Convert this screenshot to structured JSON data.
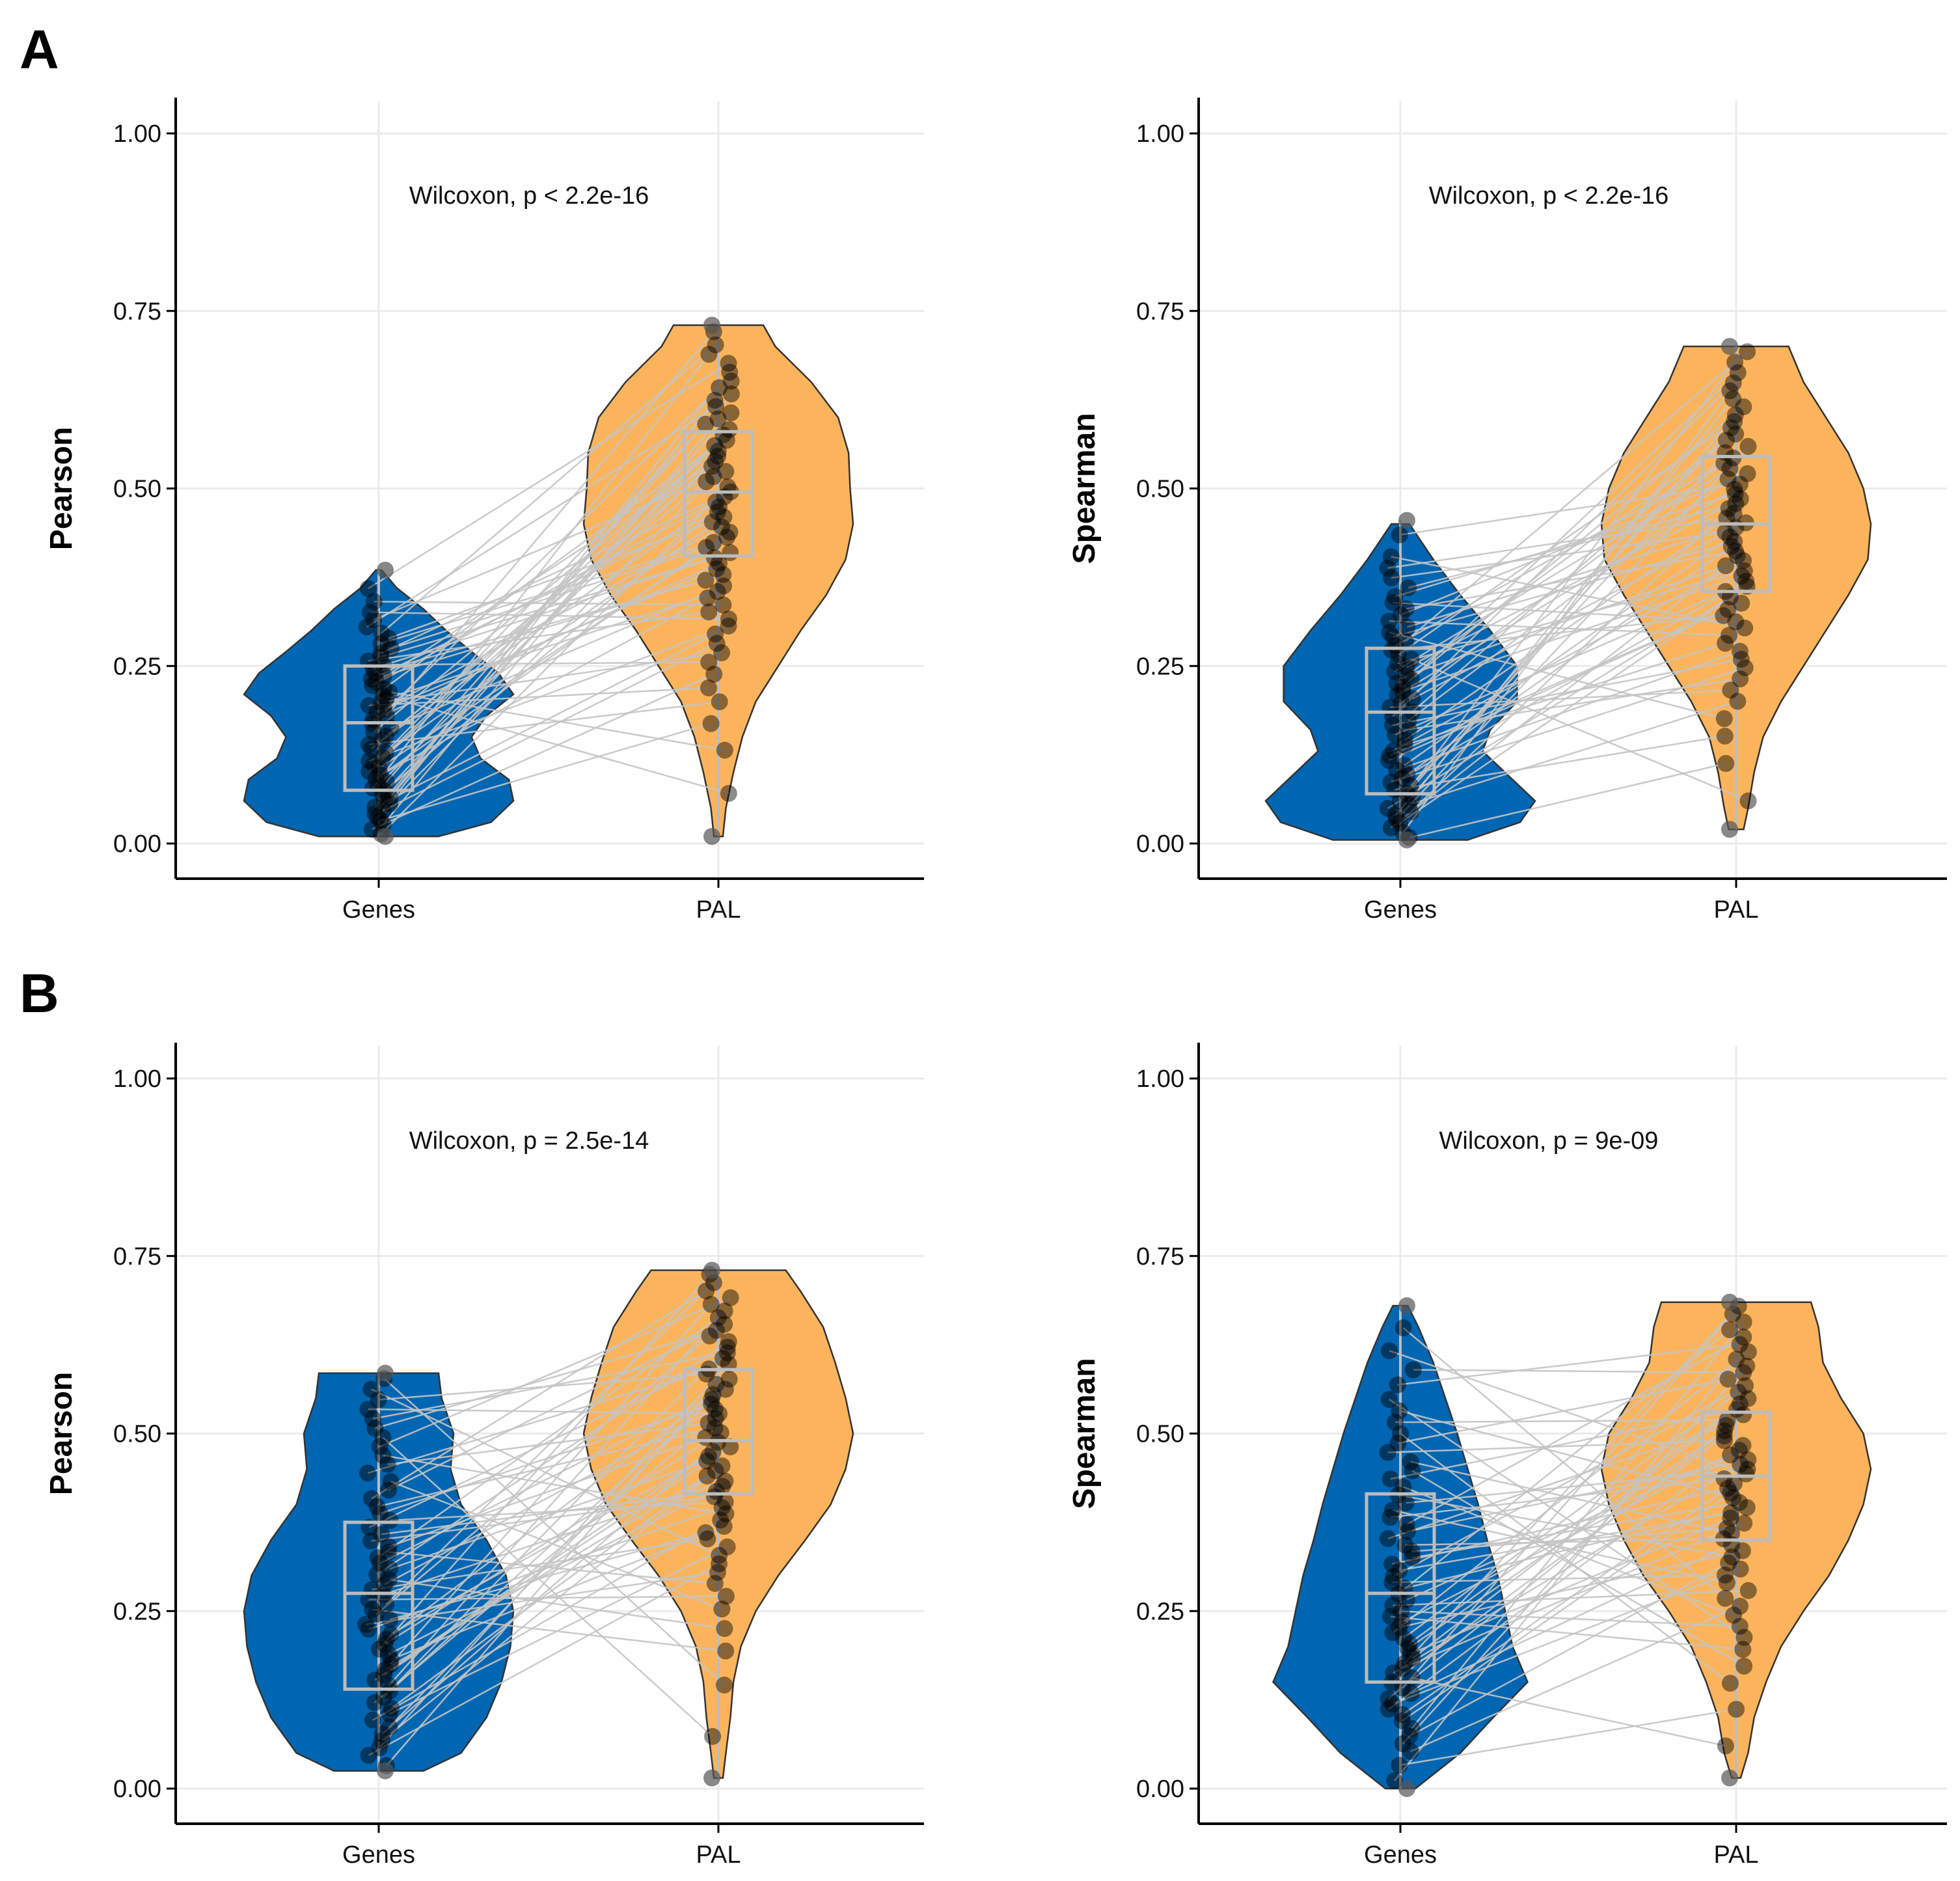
{
  "panel_labels": [
    "A",
    "B"
  ],
  "colors": {
    "genes": "#0066b2",
    "pal": "#fbb45c",
    "pair_line": "#c4c4c4",
    "box": "#bdbdbd",
    "grid": "#ebebeb",
    "point": "#000000",
    "outline": "#333333"
  },
  "chart_data": [
    {
      "panel": "A",
      "type": "violin",
      "title": "",
      "xlabel": "",
      "ylabel": "Pearson",
      "ylim": [
        0,
        1
      ],
      "y_ticks": [
        "0.00",
        "0.25",
        "0.50",
        "0.75",
        "1.00"
      ],
      "categories": [
        "Genes",
        "PAL"
      ],
      "annotation": "Wilcoxon, p < 2.2e-16",
      "series": [
        {
          "name": "Genes",
          "min": 0.01,
          "q1": 0.075,
          "median": 0.17,
          "q3": 0.25,
          "max": 0.385,
          "density": [
            [
              0.01,
              0.4
            ],
            [
              0.03,
              0.75
            ],
            [
              0.06,
              0.9
            ],
            [
              0.09,
              0.87
            ],
            [
              0.12,
              0.68
            ],
            [
              0.15,
              0.62
            ],
            [
              0.18,
              0.72
            ],
            [
              0.21,
              0.9
            ],
            [
              0.24,
              0.8
            ],
            [
              0.27,
              0.62
            ],
            [
              0.3,
              0.45
            ],
            [
              0.33,
              0.3
            ],
            [
              0.36,
              0.12
            ],
            [
              0.385,
              0.02
            ]
          ]
        },
        {
          "name": "PAL",
          "min": 0.01,
          "q1": 0.405,
          "median": 0.495,
          "q3": 0.58,
          "max": 0.73,
          "density": [
            [
              0.01,
              0.03
            ],
            [
              0.05,
              0.05
            ],
            [
              0.1,
              0.1
            ],
            [
              0.15,
              0.16
            ],
            [
              0.2,
              0.25
            ],
            [
              0.25,
              0.4
            ],
            [
              0.3,
              0.55
            ],
            [
              0.35,
              0.72
            ],
            [
              0.4,
              0.85
            ],
            [
              0.45,
              0.9
            ],
            [
              0.5,
              0.88
            ],
            [
              0.55,
              0.87
            ],
            [
              0.6,
              0.8
            ],
            [
              0.65,
              0.62
            ],
            [
              0.7,
              0.38
            ],
            [
              0.73,
              0.3
            ]
          ]
        }
      ]
    },
    {
      "panel": "A",
      "type": "violin",
      "title": "",
      "xlabel": "",
      "ylabel": "Spearman",
      "ylim": [
        0,
        1
      ],
      "y_ticks": [
        "0.00",
        "0.25",
        "0.50",
        "0.75",
        "1.00"
      ],
      "categories": [
        "Genes",
        "PAL"
      ],
      "annotation": "Wilcoxon, p < 2.2e-16",
      "series": [
        {
          "name": "Genes",
          "min": 0.005,
          "q1": 0.07,
          "median": 0.185,
          "q3": 0.275,
          "max": 0.455,
          "density": [
            [
              0.005,
              0.45
            ],
            [
              0.03,
              0.8
            ],
            [
              0.06,
              0.9
            ],
            [
              0.1,
              0.7
            ],
            [
              0.13,
              0.55
            ],
            [
              0.16,
              0.6
            ],
            [
              0.2,
              0.78
            ],
            [
              0.25,
              0.78
            ],
            [
              0.3,
              0.6
            ],
            [
              0.35,
              0.4
            ],
            [
              0.4,
              0.22
            ],
            [
              0.45,
              0.06
            ]
          ]
        },
        {
          "name": "PAL",
          "min": 0.02,
          "q1": 0.355,
          "median": 0.45,
          "q3": 0.545,
          "max": 0.7,
          "density": [
            [
              0.02,
              0.05
            ],
            [
              0.05,
              0.08
            ],
            [
              0.1,
              0.12
            ],
            [
              0.15,
              0.18
            ],
            [
              0.2,
              0.3
            ],
            [
              0.25,
              0.45
            ],
            [
              0.3,
              0.6
            ],
            [
              0.35,
              0.75
            ],
            [
              0.4,
              0.88
            ],
            [
              0.45,
              0.9
            ],
            [
              0.5,
              0.85
            ],
            [
              0.55,
              0.75
            ],
            [
              0.6,
              0.6
            ],
            [
              0.65,
              0.45
            ],
            [
              0.7,
              0.35
            ]
          ]
        }
      ]
    },
    {
      "panel": "B",
      "type": "violin",
      "title": "",
      "xlabel": "",
      "ylabel": "Pearson",
      "ylim": [
        0,
        1
      ],
      "y_ticks": [
        "0.00",
        "0.25",
        "0.50",
        "0.75",
        "1.00"
      ],
      "categories": [
        "Genes",
        "PAL"
      ],
      "annotation": "Wilcoxon, p = 2.5e-14",
      "series": [
        {
          "name": "Genes",
          "min": 0.025,
          "q1": 0.14,
          "median": 0.275,
          "q3": 0.375,
          "max": 0.585,
          "density": [
            [
              0.025,
              0.3
            ],
            [
              0.05,
              0.55
            ],
            [
              0.1,
              0.72
            ],
            [
              0.15,
              0.82
            ],
            [
              0.2,
              0.88
            ],
            [
              0.25,
              0.9
            ],
            [
              0.3,
              0.85
            ],
            [
              0.35,
              0.72
            ],
            [
              0.4,
              0.55
            ],
            [
              0.45,
              0.48
            ],
            [
              0.5,
              0.5
            ],
            [
              0.55,
              0.42
            ],
            [
              0.585,
              0.4
            ]
          ]
        },
        {
          "name": "PAL",
          "min": 0.015,
          "q1": 0.415,
          "median": 0.49,
          "q3": 0.59,
          "max": 0.73,
          "density": [
            [
              0.015,
              0.03
            ],
            [
              0.05,
              0.05
            ],
            [
              0.1,
              0.08
            ],
            [
              0.15,
              0.1
            ],
            [
              0.2,
              0.15
            ],
            [
              0.25,
              0.25
            ],
            [
              0.3,
              0.4
            ],
            [
              0.35,
              0.58
            ],
            [
              0.4,
              0.75
            ],
            [
              0.45,
              0.85
            ],
            [
              0.5,
              0.9
            ],
            [
              0.55,
              0.85
            ],
            [
              0.6,
              0.78
            ],
            [
              0.65,
              0.7
            ],
            [
              0.7,
              0.55
            ],
            [
              0.73,
              0.45
            ]
          ]
        }
      ]
    },
    {
      "panel": "B",
      "type": "violin",
      "title": "",
      "xlabel": "",
      "ylabel": "Spearman",
      "ylim": [
        0,
        1
      ],
      "y_ticks": [
        "0.00",
        "0.25",
        "0.50",
        "0.75",
        "1.00"
      ],
      "categories": [
        "Genes",
        "PAL"
      ],
      "annotation": "Wilcoxon, p = 9e-09",
      "series": [
        {
          "name": "Genes",
          "min": 0.0,
          "q1": 0.15,
          "median": 0.275,
          "q3": 0.415,
          "max": 0.68,
          "density": [
            [
              0.0,
              0.1
            ],
            [
              0.05,
              0.4
            ],
            [
              0.1,
              0.62
            ],
            [
              0.15,
              0.85
            ],
            [
              0.2,
              0.75
            ],
            [
              0.25,
              0.7
            ],
            [
              0.3,
              0.65
            ],
            [
              0.35,
              0.58
            ],
            [
              0.4,
              0.52
            ],
            [
              0.45,
              0.45
            ],
            [
              0.5,
              0.38
            ],
            [
              0.55,
              0.3
            ],
            [
              0.6,
              0.22
            ],
            [
              0.65,
              0.12
            ],
            [
              0.68,
              0.05
            ]
          ]
        },
        {
          "name": "PAL",
          "min": 0.015,
          "q1": 0.35,
          "median": 0.44,
          "q3": 0.53,
          "max": 0.685,
          "density": [
            [
              0.015,
              0.03
            ],
            [
              0.05,
              0.08
            ],
            [
              0.1,
              0.12
            ],
            [
              0.15,
              0.2
            ],
            [
              0.2,
              0.3
            ],
            [
              0.25,
              0.45
            ],
            [
              0.3,
              0.62
            ],
            [
              0.35,
              0.75
            ],
            [
              0.4,
              0.85
            ],
            [
              0.45,
              0.9
            ],
            [
              0.5,
              0.85
            ],
            [
              0.55,
              0.7
            ],
            [
              0.6,
              0.58
            ],
            [
              0.65,
              0.55
            ],
            [
              0.685,
              0.5
            ]
          ]
        }
      ]
    }
  ]
}
